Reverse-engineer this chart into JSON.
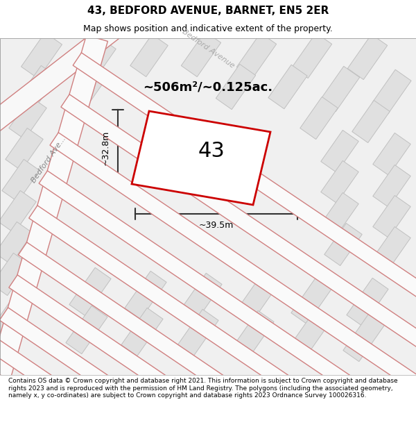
{
  "title": "43, BEDFORD AVENUE, BARNET, EN5 2ER",
  "subtitle": "Map shows position and indicative extent of the property.",
  "area_text": "~506m²/~0.125ac.",
  "number_label": "43",
  "dim_width": "~39.5m",
  "dim_height": "~32.8m",
  "road_label": "Bedford Avenue",
  "road_label_diagonal": "Bedford Ave...",
  "footer_text": "Contains OS data © Crown copyright and database right 2021. This information is subject to Crown copyright and database rights 2023 and is reproduced with the permission of HM Land Registry. The polygons (including the associated geometry, namely x, y co-ordinates) are subject to Crown copyright and database rights 2023 Ordnance Survey 100026316.",
  "bg_color": "#f5f5f5",
  "map_bg": "#ffffff",
  "footer_bg": "#f0f0f0",
  "block_fill": "#e8e8e8",
  "block_stroke": "#cccccc",
  "road_fill": "#ffffff",
  "road_stroke": "#e8b0b0",
  "highlight_stroke": "#cc0000",
  "highlight_fill": "#ffffff",
  "dim_color": "#333333",
  "title_color": "#000000",
  "footer_color": "#000000"
}
